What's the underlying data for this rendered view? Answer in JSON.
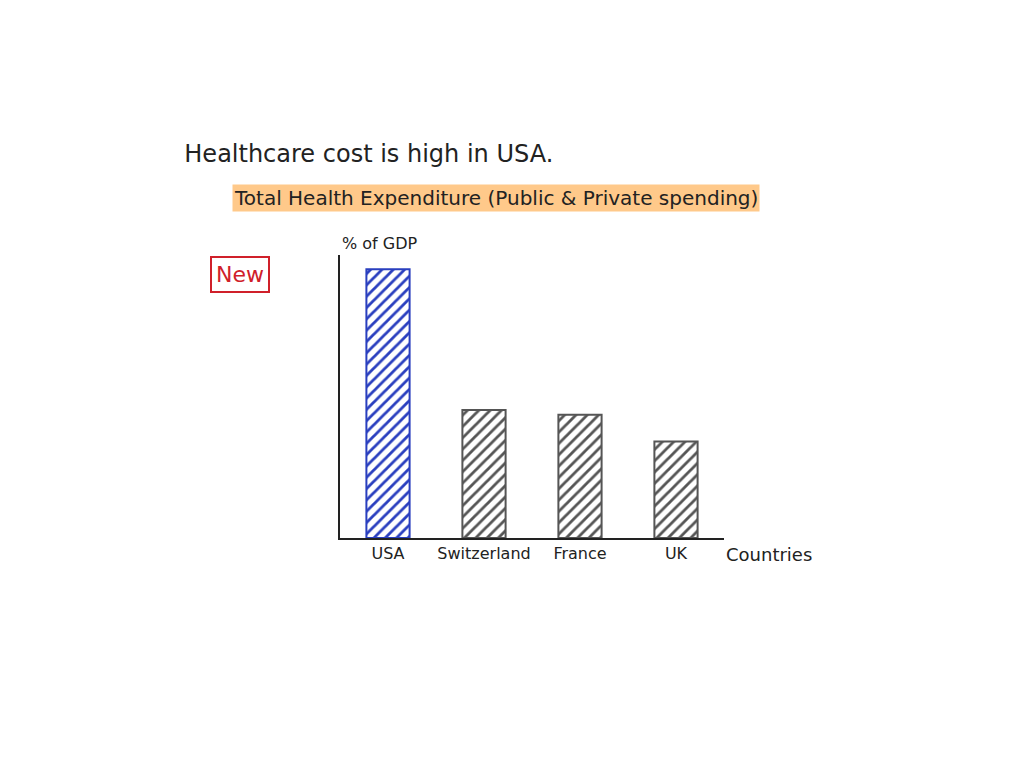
{
  "chart_data": {
    "type": "bar",
    "title": "Healthcare cost is high in USA.",
    "subtitle": "Total Health Expenditure (Public & Private spending)",
    "annotations": [
      "New"
    ],
    "ylabel": "% of GDP",
    "xlabel": "Countries",
    "categories": [
      "USA",
      "Switzerland",
      "France",
      "UK"
    ],
    "values": [
      17,
      8.1,
      7.8,
      6.1
    ],
    "colors": [
      "#2a3fbf",
      "#555555",
      "#555555",
      "#555555"
    ],
    "ylim": [
      0,
      17.9
    ],
    "yticks": [],
    "tick_labels": "x",
    "grid": false
  }
}
